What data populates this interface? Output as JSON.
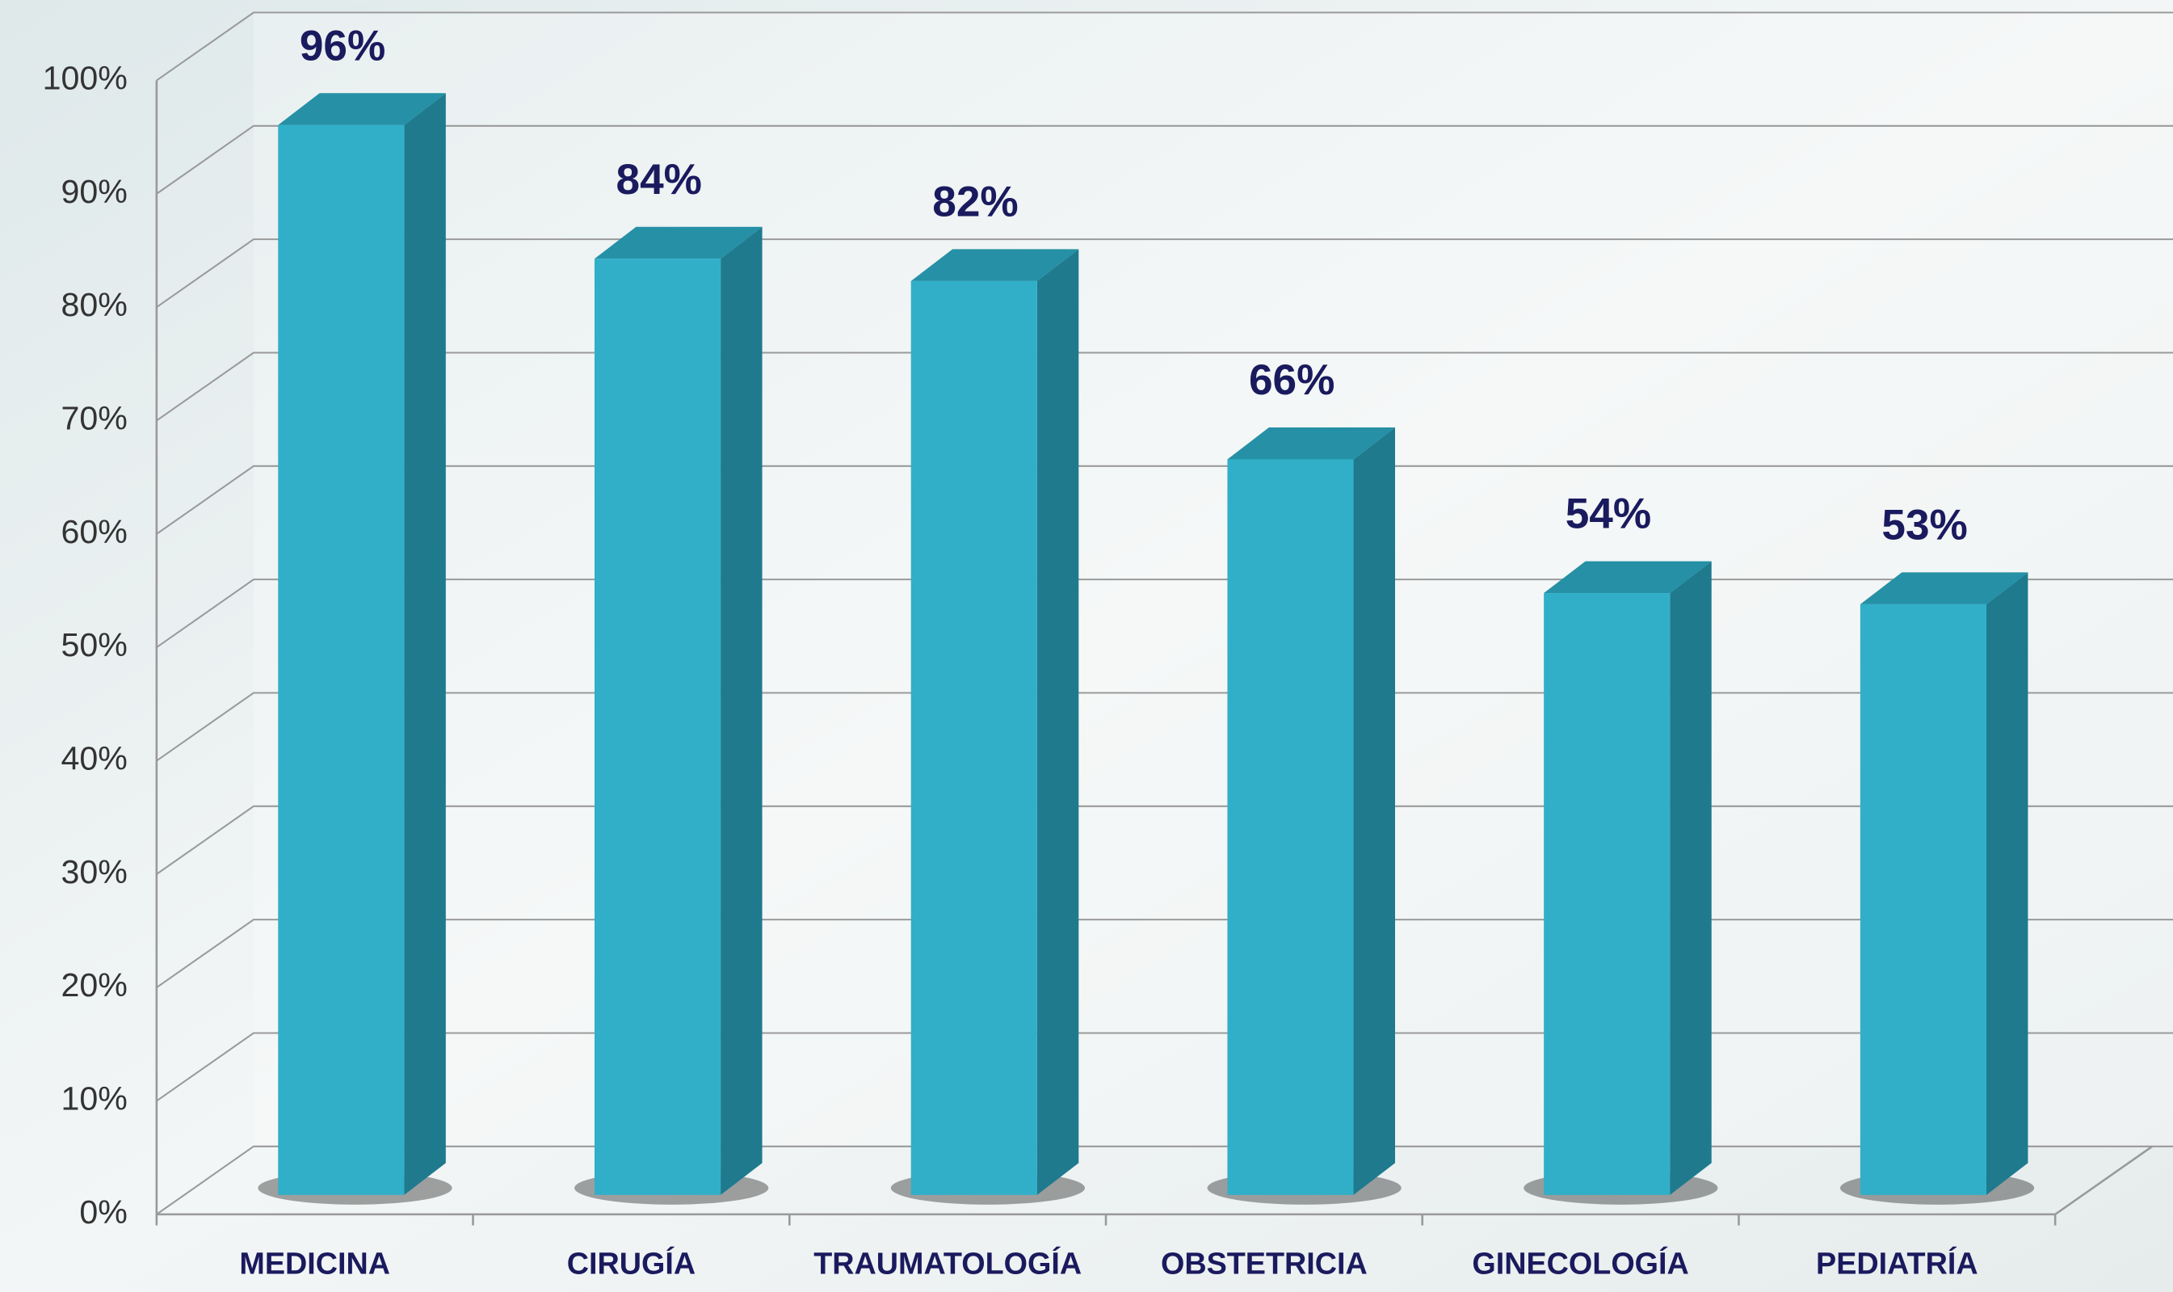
{
  "chart_data": {
    "type": "bar3d",
    "categories": [
      "MEDICINA",
      "CIRUGÍA",
      "TRAUMATOLOGÍA",
      "OBSTETRICIA",
      "GINECOLOGÍA",
      "PEDIATRÍA"
    ],
    "values": [
      96,
      84,
      82,
      66,
      54,
      53
    ],
    "value_labels": [
      "96%",
      "84%",
      "82%",
      "66%",
      "54%",
      "53%"
    ],
    "color": "#31afc9",
    "ylim": [
      0,
      100
    ],
    "yticks": [
      {
        "value": 0,
        "label": "0%"
      },
      {
        "value": 10,
        "label": "10%"
      },
      {
        "value": 20,
        "label": "20%"
      },
      {
        "value": 30,
        "label": "30%"
      },
      {
        "value": 40,
        "label": "40%"
      },
      {
        "value": 50,
        "label": "50%"
      },
      {
        "value": 60,
        "label": "60%"
      },
      {
        "value": 70,
        "label": "70%"
      },
      {
        "value": 80,
        "label": "80%"
      },
      {
        "value": 90,
        "label": "90%"
      },
      {
        "value": 100,
        "label": "100%"
      }
    ],
    "grid": true
  }
}
